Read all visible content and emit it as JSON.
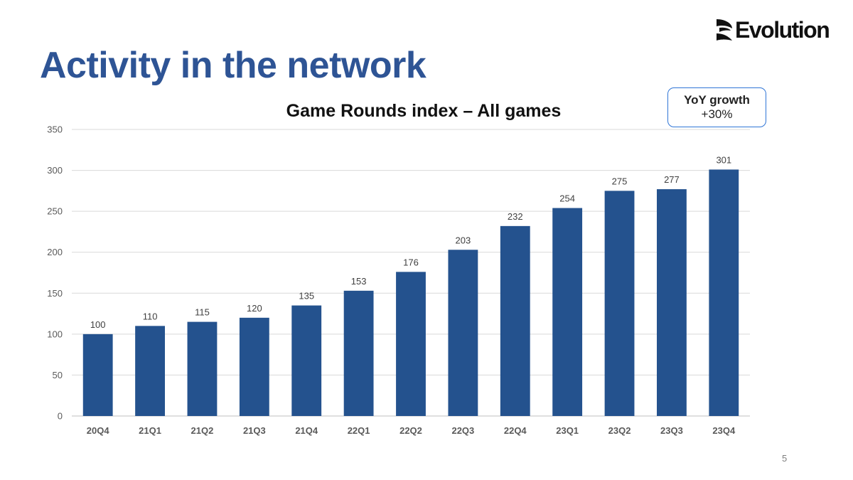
{
  "slide": {
    "title": "Activity in the network",
    "page_number": "5"
  },
  "logo": {
    "text": "Evolution"
  },
  "yoy": {
    "label": "YoY growth",
    "value": "+30%"
  },
  "colors": {
    "bar": "#24528e",
    "title": "#2e5495",
    "box_border": "#2f75d6",
    "grid": "#d9d9d9"
  },
  "chart_data": {
    "type": "bar",
    "title": "Game Rounds index – All games",
    "categories": [
      "20Q4",
      "21Q1",
      "21Q2",
      "21Q3",
      "21Q4",
      "22Q1",
      "22Q2",
      "22Q3",
      "22Q4",
      "23Q1",
      "23Q2",
      "23Q3",
      "23Q4"
    ],
    "values": [
      100,
      110,
      115,
      120,
      135,
      153,
      176,
      203,
      232,
      254,
      275,
      277,
      301
    ],
    "ylim": [
      0,
      350
    ],
    "yticks": [
      0,
      50,
      100,
      150,
      200,
      250,
      300,
      350
    ],
    "grid": true,
    "data_labels": true,
    "legend": "none"
  }
}
